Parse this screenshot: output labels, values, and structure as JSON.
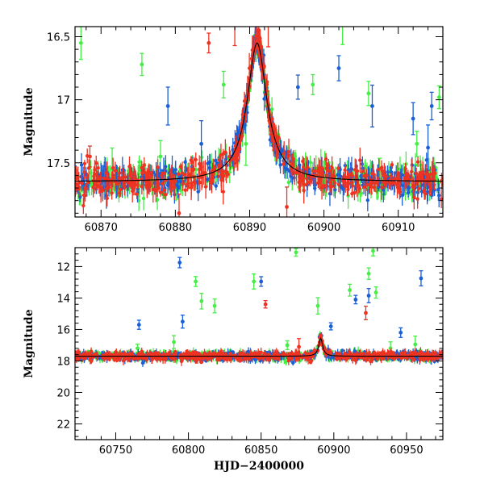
{
  "colors": {
    "green": "#44ee44",
    "blue": "#1a5fd6",
    "red": "#ee3322",
    "model": "#000000"
  },
  "chart_data": [
    {
      "type": "scatter",
      "title": "",
      "xlabel": "",
      "ylabel": "Magnitude",
      "xlim": [
        60866.5,
        60916
      ],
      "ylim": [
        17.93,
        16.42
      ],
      "y_inverted": true,
      "xticks": [
        60870,
        60880,
        60890,
        60900,
        60910
      ],
      "yticks": [
        16.5,
        17,
        17.5
      ],
      "tick_labels_x": [
        "60870",
        "60880",
        "60890",
        "60900",
        "60910"
      ],
      "tick_labels_y": [
        "16.5",
        "17",
        "17.5"
      ],
      "baseline_mag": 17.65,
      "model_curve": {
        "peak_x": 60891,
        "peak_mag": 16.55,
        "width_days": 1.6,
        "label": "model"
      },
      "series": [
        {
          "name": "green",
          "outlier_points": [
            [
              60867.3,
              16.55
            ],
            [
              60875.5,
              16.72
            ],
            [
              60878.0,
              17.45
            ],
            [
              60886.5,
              16.88
            ],
            [
              60898.5,
              16.88
            ],
            [
              60902.5,
              16.4
            ],
            [
              60906.0,
              16.95
            ],
            [
              60912.5,
              17.35
            ],
            [
              60915.5,
              16.98
            ],
            [
              60871.5,
              17.55
            ],
            [
              60889.5,
              17.35
            ],
            [
              60907.5,
              17.55
            ]
          ]
        },
        {
          "name": "blue",
          "outlier_points": [
            [
              60879.0,
              17.05
            ],
            [
              60883.5,
              17.35
            ],
            [
              60896.5,
              16.9
            ],
            [
              60902.0,
              16.75
            ],
            [
              60906.5,
              17.05
            ],
            [
              60912.0,
              17.15
            ],
            [
              60914.5,
              17.05
            ],
            [
              60914.0,
              17.38
            ]
          ]
        },
        {
          "name": "red",
          "outlier_points": [
            [
              60868.5,
              17.45
            ],
            [
              60880.5,
              17.9
            ],
            [
              60884.5,
              16.55
            ],
            [
              60888.0,
              16.38
            ],
            [
              60892.5,
              16.4
            ],
            [
              60895.0,
              17.85
            ]
          ]
        }
      ]
    },
    {
      "type": "scatter",
      "title": "",
      "xlabel": "HJD−2400000",
      "ylabel": "Magnitude",
      "xlim": [
        60722,
        60975
      ],
      "ylim": [
        23.0,
        10.8
      ],
      "y_inverted": true,
      "xticks": [
        60750,
        60800,
        60850,
        60900,
        60950
      ],
      "yticks": [
        12,
        14,
        16,
        18,
        20,
        22
      ],
      "tick_labels_x": [
        "60750",
        "60800",
        "60850",
        "60900",
        "60950"
      ],
      "tick_labels_y": [
        "12",
        "14",
        "16",
        "18",
        "20",
        "22"
      ],
      "baseline_mag": 17.7,
      "model_curve": {
        "peak_x": 60891,
        "peak_mag": 16.55,
        "width_days": 1.6,
        "label": "model"
      },
      "series": [
        {
          "name": "green",
          "outlier_points": [
            [
              60805.0,
              12.95
            ],
            [
              60809.0,
              14.2
            ],
            [
              60818.0,
              14.5
            ],
            [
              60845.0,
              12.95
            ],
            [
              60874.0,
              11.1
            ],
            [
              60889.0,
              14.5
            ],
            [
              60911.0,
              13.5
            ],
            [
              60924.0,
              12.45
            ],
            [
              60927.0,
              11.0
            ],
            [
              60929.0,
              13.65
            ],
            [
              60765.0,
              17.2
            ],
            [
              60790.0,
              16.8
            ],
            [
              60868.0,
              17.0
            ],
            [
              60939.0,
              17.2
            ],
            [
              60956.0,
              16.95
            ]
          ]
        },
        {
          "name": "blue",
          "outlier_points": [
            [
              60766.0,
              15.7
            ],
            [
              60794.0,
              11.75
            ],
            [
              60796.0,
              15.5
            ],
            [
              60850.0,
              12.95
            ],
            [
              60898.0,
              15.8
            ],
            [
              60915.0,
              14.1
            ],
            [
              60924.0,
              13.85
            ],
            [
              60960.0,
              12.75
            ],
            [
              60946.0,
              16.2
            ]
          ]
        },
        {
          "name": "red",
          "outlier_points": [
            [
              60853.0,
              14.4
            ],
            [
              60922.0,
              14.95
            ],
            [
              60876.0,
              17.1
            ]
          ]
        }
      ]
    }
  ]
}
